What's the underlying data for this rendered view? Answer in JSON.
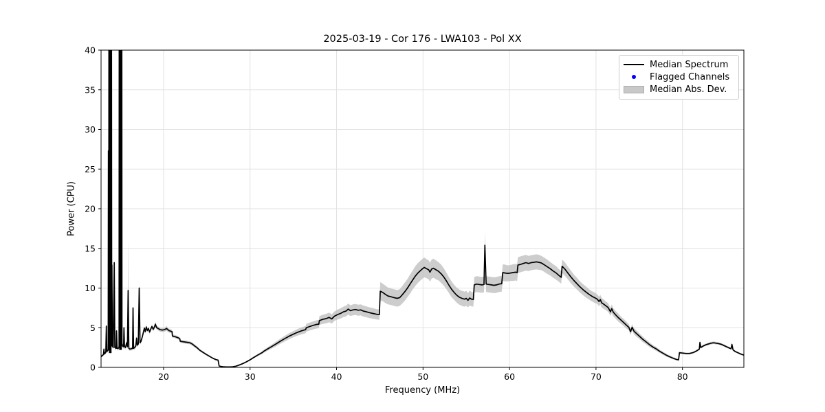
{
  "chart_data": {
    "type": "line",
    "title": "2025-03-19 - Cor 176 - LWA103 - Pol XX",
    "xlabel": "Frequency (MHz)",
    "ylabel": "Power (CPU)",
    "xlim": [
      12.77,
      87.1
    ],
    "ylim": [
      0,
      40
    ],
    "x_ticks": [
      20,
      30,
      40,
      50,
      60,
      70,
      80
    ],
    "y_ticks": [
      0,
      5,
      10,
      15,
      20,
      25,
      30,
      35,
      40
    ],
    "grid": true,
    "legend_loc": "upper right",
    "colors": {
      "line": "#000000",
      "band": "#c0c0c0",
      "flagged": "#0000ff",
      "grid": "#e2e2e2",
      "spine": "#000000",
      "background": "#ffffff"
    },
    "legend": {
      "entries": [
        {
          "label": "Median Spectrum",
          "swatch": "line",
          "color": "#000000"
        },
        {
          "label": "Flagged Channels",
          "swatch": "dot",
          "color": "#0000ff"
        },
        {
          "label": "Median Abs. Dev.",
          "swatch": "patch",
          "color": "#c8c8c8"
        }
      ]
    },
    "flagged_channels": [],
    "clipped_columns": [
      {
        "f_start": 13.68,
        "f_end": 13.98,
        "v_top": 40,
        "v_bottom": 1.8
      },
      {
        "f_start": 14.87,
        "f_end": 15.17,
        "v_top": 40,
        "v_bottom": 2.2
      }
    ],
    "series_points": [
      [
        12.77,
        1.35,
        0.15
      ],
      [
        12.85,
        1.45,
        0.15
      ],
      [
        12.95,
        1.5,
        0.15
      ],
      [
        13.05,
        1.65,
        0.2
      ],
      [
        13.1,
        2.3,
        0.25
      ],
      [
        13.15,
        1.7,
        0.2
      ],
      [
        13.25,
        1.8,
        0.2
      ],
      [
        13.32,
        1.9,
        0.2
      ],
      [
        13.38,
        5.2,
        0.3
      ],
      [
        13.44,
        2.0,
        0.2
      ],
      [
        13.52,
        2.1,
        0.2
      ],
      [
        13.6,
        2.2,
        0.2
      ],
      [
        13.62,
        27.3,
        0.5
      ],
      [
        13.66,
        2.2,
        0.2
      ],
      [
        13.68,
        40,
        0.3
      ],
      [
        13.98,
        40,
        0.3
      ],
      [
        14.0,
        2.7,
        0.3
      ],
      [
        14.03,
        12.9,
        8.8
      ],
      [
        14.08,
        2.7,
        0.3
      ],
      [
        14.18,
        2.5,
        0.25
      ],
      [
        14.3,
        13.2,
        0.5
      ],
      [
        14.36,
        2.5,
        0.25
      ],
      [
        14.5,
        2.4,
        0.25
      ],
      [
        14.56,
        4.6,
        0.3
      ],
      [
        14.62,
        2.4,
        0.25
      ],
      [
        14.75,
        2.4,
        0.25
      ],
      [
        14.85,
        2.5,
        0.3
      ],
      [
        14.87,
        40,
        0.3
      ],
      [
        15.17,
        40,
        0.3
      ],
      [
        15.19,
        3.0,
        0.3
      ],
      [
        15.26,
        2.7,
        0.25
      ],
      [
        15.38,
        2.6,
        0.25
      ],
      [
        15.42,
        5.0,
        0.3
      ],
      [
        15.48,
        2.6,
        0.25
      ],
      [
        15.6,
        2.5,
        0.25
      ],
      [
        15.72,
        3.1,
        0.3
      ],
      [
        15.82,
        2.6,
        0.3
      ],
      [
        15.9,
        9.7,
        6.6
      ],
      [
        15.98,
        2.4,
        0.25
      ],
      [
        16.1,
        2.3,
        0.2
      ],
      [
        16.25,
        2.35,
        0.2
      ],
      [
        16.42,
        2.4,
        0.25
      ],
      [
        16.47,
        7.5,
        0.4
      ],
      [
        16.53,
        2.4,
        0.25
      ],
      [
        16.65,
        2.5,
        0.25
      ],
      [
        16.78,
        2.65,
        0.25
      ],
      [
        16.88,
        3.7,
        0.3
      ],
      [
        16.95,
        2.8,
        0.25
      ],
      [
        17.08,
        2.95,
        0.25
      ],
      [
        17.18,
        10.0,
        0.5
      ],
      [
        17.28,
        3.1,
        0.25
      ],
      [
        17.4,
        3.3,
        0.25
      ],
      [
        17.55,
        3.9,
        0.25
      ],
      [
        17.68,
        4.5,
        0.25
      ],
      [
        17.78,
        4.95,
        0.25
      ],
      [
        17.88,
        4.5,
        0.25
      ],
      [
        18.0,
        5.1,
        0.3
      ],
      [
        18.12,
        4.65,
        0.25
      ],
      [
        18.25,
        4.9,
        0.25
      ],
      [
        18.38,
        4.45,
        0.25
      ],
      [
        18.52,
        4.85,
        0.25
      ],
      [
        18.65,
        5.15,
        0.3
      ],
      [
        18.8,
        4.8,
        0.25
      ],
      [
        18.95,
        5.1,
        0.3
      ],
      [
        19.05,
        5.45,
        0.3
      ],
      [
        19.2,
        5.0,
        0.25
      ],
      [
        19.38,
        4.9,
        0.25
      ],
      [
        19.6,
        4.75,
        0.25
      ],
      [
        19.85,
        4.7,
        0.25
      ],
      [
        20.1,
        4.75,
        0.25
      ],
      [
        20.35,
        4.9,
        0.3
      ],
      [
        20.6,
        4.65,
        0.25
      ],
      [
        20.85,
        4.55,
        0.25
      ],
      [
        20.98,
        4.5,
        0.25
      ],
      [
        21.02,
        3.95,
        0.2
      ],
      [
        21.25,
        3.9,
        0.2
      ],
      [
        21.5,
        3.8,
        0.2
      ],
      [
        21.75,
        3.7,
        0.2
      ],
      [
        21.88,
        3.6,
        0.2
      ],
      [
        21.92,
        3.3,
        0.2
      ],
      [
        22.15,
        3.25,
        0.2
      ],
      [
        22.45,
        3.2,
        0.2
      ],
      [
        22.75,
        3.15,
        0.2
      ],
      [
        23.05,
        3.1,
        0.2
      ],
      [
        23.3,
        2.95,
        0.2
      ],
      [
        23.6,
        2.7,
        0.2
      ],
      [
        23.9,
        2.45,
        0.18
      ],
      [
        24.2,
        2.15,
        0.15
      ],
      [
        24.55,
        1.9,
        0.15
      ],
      [
        24.9,
        1.65,
        0.12
      ],
      [
        25.3,
        1.4,
        0.12
      ],
      [
        25.7,
        1.15,
        0.1
      ],
      [
        26.05,
        0.98,
        0.1
      ],
      [
        26.3,
        0.92,
        0.1
      ],
      [
        26.42,
        0.18,
        0.06
      ],
      [
        26.6,
        0.12,
        0.05
      ],
      [
        26.9,
        0.08,
        0.05
      ],
      [
        27.3,
        0.06,
        0.04
      ],
      [
        27.7,
        0.06,
        0.04
      ],
      [
        28.0,
        0.08,
        0.05
      ],
      [
        28.35,
        0.15,
        0.06
      ],
      [
        28.7,
        0.28,
        0.08
      ],
      [
        29.1,
        0.45,
        0.08
      ],
      [
        29.5,
        0.65,
        0.1
      ],
      [
        30.0,
        0.95,
        0.1
      ],
      [
        30.5,
        1.3,
        0.12
      ],
      [
        31.0,
        1.62,
        0.15
      ],
      [
        31.45,
        1.9,
        0.18
      ],
      [
        31.55,
        2.0,
        0.18
      ],
      [
        32.0,
        2.3,
        0.22
      ],
      [
        32.5,
        2.62,
        0.25
      ],
      [
        33.0,
        2.95,
        0.3
      ],
      [
        33.5,
        3.3,
        0.32
      ],
      [
        34.0,
        3.62,
        0.35
      ],
      [
        34.5,
        3.92,
        0.38
      ],
      [
        35.0,
        4.18,
        0.4
      ],
      [
        35.5,
        4.42,
        0.42
      ],
      [
        36.0,
        4.62,
        0.45
      ],
      [
        36.42,
        4.75,
        0.45
      ],
      [
        36.5,
        5.0,
        0.5
      ],
      [
        36.9,
        5.15,
        0.5
      ],
      [
        37.3,
        5.3,
        0.5
      ],
      [
        37.7,
        5.42,
        0.52
      ],
      [
        37.95,
        5.45,
        0.52
      ],
      [
        38.02,
        5.9,
        0.55
      ],
      [
        38.4,
        6.05,
        0.58
      ],
      [
        38.8,
        6.15,
        0.6
      ],
      [
        39.15,
        6.3,
        0.6
      ],
      [
        39.45,
        6.1,
        0.58
      ],
      [
        39.75,
        6.45,
        0.6
      ],
      [
        40.1,
        6.65,
        0.62
      ],
      [
        40.45,
        6.8,
        0.65
      ],
      [
        40.8,
        7.0,
        0.65
      ],
      [
        41.1,
        7.1,
        0.68
      ],
      [
        41.35,
        7.35,
        0.7
      ],
      [
        41.6,
        7.15,
        0.68
      ],
      [
        41.9,
        7.25,
        0.7
      ],
      [
        42.2,
        7.3,
        0.7
      ],
      [
        42.5,
        7.2,
        0.7
      ],
      [
        42.8,
        7.25,
        0.7
      ],
      [
        43.1,
        7.1,
        0.7
      ],
      [
        43.45,
        7.0,
        0.68
      ],
      [
        43.8,
        6.9,
        0.68
      ],
      [
        44.2,
        6.8,
        0.68
      ],
      [
        44.6,
        6.7,
        0.65
      ],
      [
        44.95,
        6.65,
        0.65
      ],
      [
        45.05,
        9.6,
        1.15
      ],
      [
        45.35,
        9.45,
        1.1
      ],
      [
        45.65,
        9.2,
        1.1
      ],
      [
        45.95,
        9.0,
        1.05
      ],
      [
        46.3,
        8.9,
        1.05
      ],
      [
        46.65,
        8.8,
        1.05
      ],
      [
        47.0,
        8.7,
        1.05
      ],
      [
        47.3,
        8.8,
        1.05
      ],
      [
        47.6,
        9.15,
        1.1
      ],
      [
        47.9,
        9.55,
        1.15
      ],
      [
        48.2,
        10.0,
        1.15
      ],
      [
        48.5,
        10.5,
        1.2
      ],
      [
        48.8,
        11.0,
        1.2
      ],
      [
        49.1,
        11.5,
        1.25
      ],
      [
        49.4,
        11.9,
        1.25
      ],
      [
        49.7,
        12.2,
        1.25
      ],
      [
        49.95,
        12.45,
        1.25
      ],
      [
        50.15,
        12.6,
        1.25
      ],
      [
        50.4,
        12.45,
        1.2
      ],
      [
        50.65,
        12.3,
        1.2
      ],
      [
        50.8,
        12.0,
        1.2
      ],
      [
        51.0,
        12.4,
        1.2
      ],
      [
        51.2,
        12.5,
        1.2
      ],
      [
        51.5,
        12.3,
        1.2
      ],
      [
        51.8,
        12.1,
        1.15
      ],
      [
        52.1,
        11.8,
        1.15
      ],
      [
        52.4,
        11.4,
        1.1
      ],
      [
        52.7,
        10.9,
        1.05
      ],
      [
        53.0,
        10.35,
        1.0
      ],
      [
        53.3,
        9.85,
        1.0
      ],
      [
        53.6,
        9.45,
        0.95
      ],
      [
        53.9,
        9.1,
        0.95
      ],
      [
        54.2,
        8.85,
        0.95
      ],
      [
        54.5,
        8.7,
        0.95
      ],
      [
        54.8,
        8.6,
        0.95
      ],
      [
        55.0,
        8.7,
        0.95
      ],
      [
        55.2,
        8.45,
        0.9
      ],
      [
        55.4,
        8.75,
        0.95
      ],
      [
        55.6,
        8.6,
        0.9
      ],
      [
        55.82,
        8.55,
        0.9
      ],
      [
        55.92,
        10.4,
        1.0
      ],
      [
        56.2,
        10.5,
        1.0
      ],
      [
        56.5,
        10.45,
        1.0
      ],
      [
        56.8,
        10.4,
        1.0
      ],
      [
        57.05,
        10.45,
        1.0
      ],
      [
        57.15,
        15.4,
        1.7
      ],
      [
        57.3,
        10.5,
        1.0
      ],
      [
        57.6,
        10.45,
        1.0
      ],
      [
        57.9,
        10.4,
        1.0
      ],
      [
        58.2,
        10.35,
        1.0
      ],
      [
        58.5,
        10.4,
        1.0
      ],
      [
        58.8,
        10.5,
        1.0
      ],
      [
        59.1,
        10.55,
        1.0
      ],
      [
        59.22,
        11.95,
        1.05
      ],
      [
        59.5,
        11.9,
        1.05
      ],
      [
        59.8,
        11.85,
        1.0
      ],
      [
        60.1,
        11.9,
        1.0
      ],
      [
        60.4,
        11.95,
        1.05
      ],
      [
        60.7,
        12.0,
        1.05
      ],
      [
        60.88,
        11.95,
        1.05
      ],
      [
        60.98,
        12.9,
        1.0
      ],
      [
        61.3,
        13.0,
        1.0
      ],
      [
        61.6,
        13.1,
        1.0
      ],
      [
        61.9,
        13.2,
        1.0
      ],
      [
        62.2,
        13.1,
        0.95
      ],
      [
        62.5,
        13.2,
        0.95
      ],
      [
        62.8,
        13.25,
        0.95
      ],
      [
        63.1,
        13.3,
        0.95
      ],
      [
        63.4,
        13.25,
        0.95
      ],
      [
        63.7,
        13.15,
        0.9
      ],
      [
        64.0,
        12.95,
        0.9
      ],
      [
        64.35,
        12.7,
        0.9
      ],
      [
        64.7,
        12.45,
        0.85
      ],
      [
        65.05,
        12.15,
        0.85
      ],
      [
        65.4,
        11.9,
        0.85
      ],
      [
        65.7,
        11.6,
        0.8
      ],
      [
        65.98,
        11.35,
        0.8
      ],
      [
        66.08,
        12.75,
        0.85
      ],
      [
        66.4,
        12.4,
        0.85
      ],
      [
        66.75,
        11.9,
        0.8
      ],
      [
        67.1,
        11.4,
        0.8
      ],
      [
        67.45,
        10.95,
        0.75
      ],
      [
        67.8,
        10.55,
        0.75
      ],
      [
        68.15,
        10.15,
        0.7
      ],
      [
        68.5,
        9.8,
        0.7
      ],
      [
        68.85,
        9.5,
        0.7
      ],
      [
        69.2,
        9.2,
        0.65
      ],
      [
        69.55,
        8.95,
        0.65
      ],
      [
        69.9,
        8.75,
        0.65
      ],
      [
        70.15,
        8.6,
        0.6
      ],
      [
        70.35,
        8.3,
        0.6
      ],
      [
        70.5,
        8.55,
        0.6
      ],
      [
        70.65,
        8.15,
        0.6
      ],
      [
        70.85,
        8.0,
        0.6
      ],
      [
        71.1,
        7.8,
        0.55
      ],
      [
        71.4,
        7.55,
        0.55
      ],
      [
        71.68,
        7.0,
        0.5
      ],
      [
        71.82,
        7.4,
        0.55
      ],
      [
        72.0,
        6.95,
        0.5
      ],
      [
        72.3,
        6.6,
        0.5
      ],
      [
        72.6,
        6.25,
        0.5
      ],
      [
        72.9,
        5.95,
        0.45
      ],
      [
        73.2,
        5.65,
        0.45
      ],
      [
        73.5,
        5.35,
        0.45
      ],
      [
        73.8,
        5.05,
        0.4
      ],
      [
        74.0,
        4.5,
        0.4
      ],
      [
        74.18,
        5.05,
        0.4
      ],
      [
        74.4,
        4.55,
        0.4
      ],
      [
        74.7,
        4.25,
        0.4
      ],
      [
        75.0,
        3.95,
        0.35
      ],
      [
        75.4,
        3.55,
        0.35
      ],
      [
        75.8,
        3.2,
        0.3
      ],
      [
        76.2,
        2.85,
        0.3
      ],
      [
        76.6,
        2.55,
        0.25
      ],
      [
        77.0,
        2.3,
        0.25
      ],
      [
        77.4,
        2.0,
        0.2
      ],
      [
        77.8,
        1.75,
        0.2
      ],
      [
        78.2,
        1.5,
        0.18
      ],
      [
        78.6,
        1.3,
        0.15
      ],
      [
        79.0,
        1.12,
        0.15
      ],
      [
        79.3,
        1.0,
        0.12
      ],
      [
        79.55,
        0.95,
        0.12
      ],
      [
        79.65,
        1.85,
        0.12
      ],
      [
        80.0,
        1.8,
        0.12
      ],
      [
        80.4,
        1.75,
        0.12
      ],
      [
        80.8,
        1.75,
        0.12
      ],
      [
        81.2,
        1.85,
        0.12
      ],
      [
        81.6,
        2.05,
        0.13
      ],
      [
        81.95,
        2.3,
        0.14
      ],
      [
        82.02,
        3.15,
        0.15
      ],
      [
        82.12,
        2.5,
        0.15
      ],
      [
        82.4,
        2.7,
        0.15
      ],
      [
        82.7,
        2.85,
        0.15
      ],
      [
        83.0,
        2.95,
        0.16
      ],
      [
        83.3,
        3.05,
        0.16
      ],
      [
        83.6,
        3.1,
        0.16
      ],
      [
        83.9,
        3.05,
        0.16
      ],
      [
        84.2,
        3.0,
        0.15
      ],
      [
        84.5,
        2.9,
        0.15
      ],
      [
        84.8,
        2.75,
        0.15
      ],
      [
        85.1,
        2.6,
        0.14
      ],
      [
        85.4,
        2.45,
        0.14
      ],
      [
        85.62,
        2.35,
        0.13
      ],
      [
        85.72,
        2.9,
        0.13
      ],
      [
        85.85,
        2.2,
        0.13
      ],
      [
        86.1,
        2.0,
        0.12
      ],
      [
        86.4,
        1.85,
        0.12
      ],
      [
        86.7,
        1.7,
        0.12
      ],
      [
        86.95,
        1.6,
        0.12
      ],
      [
        87.1,
        1.55,
        0.12
      ]
    ]
  }
}
